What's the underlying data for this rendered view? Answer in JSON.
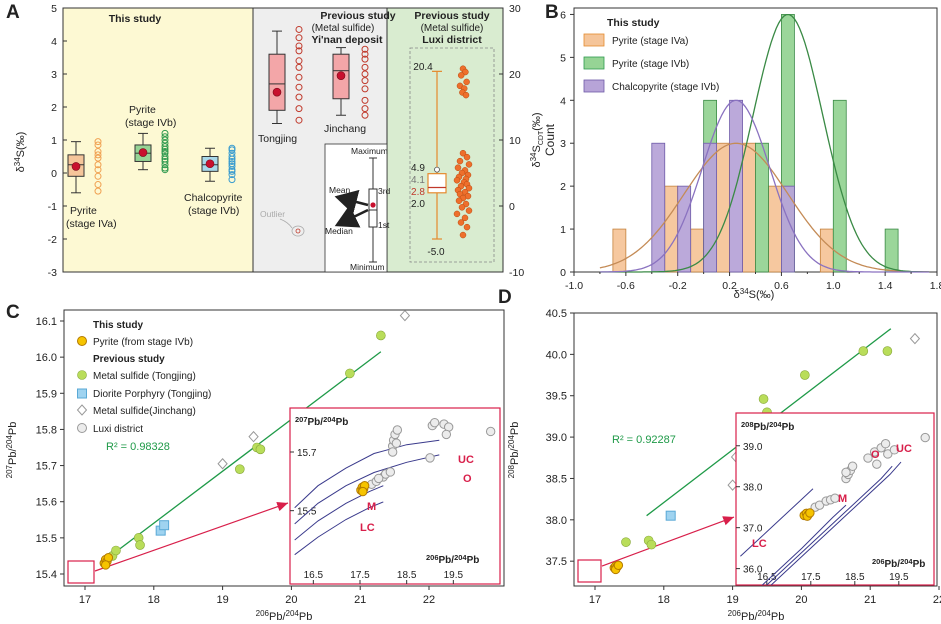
{
  "colors": {
    "study_bg": "#fdf9d3",
    "prev_bg": "#eeeeee",
    "luxi_bg": "#d9ecd0",
    "pyrite_a": "#f5c59a",
    "pyrite_a_line": "#e58a2e",
    "pyrite_b": "#96d495",
    "pyrite_b_line": "#2f9a4f",
    "chalco": "#a8d8ea",
    "chalco_line": "#3a9ccf",
    "chalco_hist": "#b7a4d8",
    "prev_box": "#f3a6a8",
    "prev_line": "#c0392b",
    "luxi_point": "#ee6f2c",
    "mean_dot": "#c8102e",
    "this_pyrite": "#f6c400",
    "tongjing_sulfide": "#b9dd5a",
    "porphyry": "#9fd3f0",
    "reg_line": "#1f9a48",
    "curve": "#3a3a8c",
    "accent": "#d81f4a"
  },
  "chart_data": [
    {
      "panel": "A",
      "type": "box",
      "ylabel_left": "δ34S(‰)",
      "ylabel_right": "δ34SCDT(‰)",
      "ylim_left": [
        -3,
        5
      ],
      "ylim_right": [
        -10,
        30
      ],
      "yticks_left": [
        "5",
        "4",
        "3",
        "2",
        "1",
        "0",
        "-1",
        "-2",
        "-3"
      ],
      "yticks_right": [
        "30",
        "20",
        "10",
        "0",
        "-10"
      ],
      "section_titles": [
        "This study",
        "Previous study",
        "(Metal sulfide)",
        "Yi'nan deposit",
        "Previous study",
        "(Metal sulfide)",
        "Luxi district"
      ],
      "groups": [
        {
          "name": "Pyrite (stage IVa)",
          "line1": "Pyrite",
          "line2": "(stage IVa)",
          "min": -0.6,
          "q1": -0.1,
          "median": 0.25,
          "q3": 0.55,
          "max": 0.95,
          "mean": 0.2,
          "points": [
            0.95,
            0.85,
            0.65,
            0.55,
            0.45,
            0.25,
            0.1,
            -0.1,
            -0.35,
            -0.55
          ]
        },
        {
          "name": "Pyrite (stage IVb)",
          "line1": "Pyrite",
          "line2": "(stage IVb)",
          "min": 0.1,
          "q1": 0.35,
          "median": 0.6,
          "q3": 0.85,
          "max": 1.2,
          "mean": 0.62,
          "points": [
            1.2,
            1.1,
            1.0,
            0.9,
            0.8,
            0.72,
            0.65,
            0.6,
            0.5,
            0.42,
            0.35,
            0.25,
            0.15,
            0.1
          ]
        },
        {
          "name": "Chalcopyrite (stage IVb)",
          "line1": "Chalcopyrite",
          "line2": "(stage IVb)",
          "min": -0.25,
          "q1": 0.05,
          "median": 0.25,
          "q3": 0.5,
          "max": 0.75,
          "mean": 0.28,
          "points": [
            0.75,
            0.7,
            0.6,
            0.5,
            0.42,
            0.35,
            0.28,
            0.2,
            0.1,
            0.05,
            -0.05,
            -0.2
          ]
        },
        {
          "name": "Tongjing",
          "line1": "Tongjing",
          "min": 1.5,
          "q1": 1.9,
          "median": 2.7,
          "q3": 3.6,
          "max": 4.3,
          "mean": 2.45,
          "points": [
            4.35,
            4.1,
            3.85,
            3.7,
            3.4,
            3.2,
            2.9,
            2.6,
            2.3,
            1.95,
            1.6
          ]
        },
        {
          "name": "Jinchang",
          "line1": "Jinchang",
          "min": 1.75,
          "q1": 2.25,
          "median": 3.1,
          "q3": 3.6,
          "max": 3.8,
          "mean": 2.95,
          "points": [
            3.75,
            3.6,
            3.45,
            3.2,
            3.0,
            2.8,
            2.55,
            2.2,
            1.95,
            1.75
          ]
        }
      ],
      "luxi": {
        "max": 20.4,
        "q3": 4.9,
        "mean": 4.1,
        "median": 2.8,
        "q1": 2.0,
        "min": -5.0,
        "labels": [
          "20.4",
          "4.9",
          "4.1",
          "2.8",
          "2.0",
          "-5.0"
        ],
        "upper_points": [
          20.8,
          20.3,
          19.8,
          18.8,
          18.2,
          17.8,
          17.2,
          16.8
        ],
        "lower_points": [
          8.0,
          7.4,
          6.8,
          6.3,
          5.8,
          5.4,
          5.0,
          4.7,
          4.4,
          4.1,
          3.9,
          3.6,
          3.3,
          3.0,
          2.7,
          2.4,
          2.1,
          1.8,
          1.5,
          1.2,
          0.8,
          0.3,
          -0.2,
          -0.7,
          -1.2,
          -1.8,
          -2.5,
          -3.2,
          -4.4
        ]
      },
      "legend_box": {
        "labels": [
          "Maximum",
          "3rd",
          "Mean",
          "Median",
          "1st",
          "Minimum",
          "Outlier"
        ]
      }
    },
    {
      "panel": "B",
      "type": "bar",
      "xlabel": "δ34S(‰)",
      "ylabel": "Count",
      "xlim": [
        -1.0,
        1.8
      ],
      "ylim": [
        0,
        6
      ],
      "xticks": [
        "-1.0",
        "-0.6",
        "-0.2",
        "0.2",
        "0.6",
        "1.0",
        "1.4",
        "1.8"
      ],
      "yticks": [
        "0",
        "1",
        "2",
        "3",
        "4",
        "5",
        "6"
      ],
      "legend_title": "This study",
      "series": [
        {
          "name": "Pyrite (stage IVa)",
          "bins": [
            [
              -0.6,
              1
            ],
            [
              -0.2,
              2
            ],
            [
              0.0,
              1
            ],
            [
              0.2,
              3
            ],
            [
              0.4,
              3
            ],
            [
              0.6,
              2
            ],
            [
              1.0,
              1
            ]
          ],
          "mean": 0.25,
          "sd": 0.4,
          "peak": 3
        },
        {
          "name": "Pyrite (stage IVb)",
          "bins": [
            [
              0.0,
              4
            ],
            [
              0.4,
              3
            ],
            [
              0.6,
              6
            ],
            [
              1.0,
              4
            ],
            [
              1.4,
              1
            ]
          ],
          "mean": 0.65,
          "sd": 0.27,
          "peak": 6
        },
        {
          "name": "Chalcopyrite (stage IVb)",
          "bins": [
            [
              -0.2,
              3
            ],
            [
              0.0,
              2
            ],
            [
              0.2,
              3
            ],
            [
              0.4,
              4
            ],
            [
              0.8,
              2
            ]
          ],
          "mean": 0.25,
          "sd": 0.26,
          "peak": 4
        }
      ]
    },
    {
      "panel": "C",
      "type": "scatter",
      "xlabel": "206Pb/204Pb",
      "ylabel": "207Pb/204Pb",
      "xlim": [
        17,
        23
      ],
      "ylim": [
        15.4,
        16.1
      ],
      "xticks": [
        "17",
        "18",
        "19",
        "20",
        "21",
        "22"
      ],
      "yticks": [
        "15.4",
        "15.5",
        "15.6",
        "15.7",
        "15.8",
        "15.9",
        "16.0",
        "16.1"
      ],
      "r2": "R² = 0.98328",
      "legend": {
        "this_study": "This study",
        "pyrite": "Pyrite (from stage IVb)",
        "previous_study": "Previous study",
        "tongjing": "Metal sulfide (Tongjing)",
        "porphyry": "Diorite Porphyry (Tongjing)",
        "jinchang": "Metal sulfide(Jinchang)",
        "luxi": "Luxi district"
      },
      "series": [
        {
          "name": "Pyrite (from stage IVb)",
          "points": [
            [
              17.28,
              15.43
            ],
            [
              17.3,
              15.44
            ],
            [
              17.32,
              15.435
            ],
            [
              17.34,
              15.445
            ],
            [
              17.3,
              15.425
            ]
          ]
        },
        {
          "name": "Metal sulfide (Tongjing)",
          "points": [
            [
              17.4,
              15.45
            ],
            [
              17.45,
              15.465
            ],
            [
              17.78,
              15.5
            ],
            [
              17.8,
              15.48
            ],
            [
              19.25,
              15.69
            ],
            [
              19.5,
              15.75
            ],
            [
              19.55,
              15.745
            ],
            [
              20.05,
              15.845
            ],
            [
              20.85,
              15.955
            ],
            [
              21.3,
              16.06
            ]
          ]
        },
        {
          "name": "Diorite Porphyry (Tongjing)",
          "points": [
            [
              18.1,
              15.52
            ],
            [
              18.15,
              15.535
            ]
          ]
        },
        {
          "name": "Metal sulfide(Jinchang)",
          "points": [
            [
              19.0,
              15.705
            ],
            [
              19.45,
              15.78
            ],
            [
              21.65,
              16.115
            ]
          ]
        }
      ],
      "regression": [
        [
          17.3,
          15.44
        ],
        [
          21.3,
          16.015
        ]
      ],
      "inset": {
        "title": "207Pb/204Pb",
        "xlabel": "206Pb/204Pb",
        "xlim": [
          16,
          20.5
        ],
        "ylim": [
          15.25,
          15.85
        ],
        "xticks": [
          "16.5",
          "17.5",
          "18.5",
          "19.5"
        ],
        "yticks": [
          "15.7",
          "15.5"
        ],
        "curve_labels": [
          "UC",
          "O",
          "M",
          "LC"
        ],
        "pyrite": [
          [
            17.52,
            15.57
          ],
          [
            17.55,
            15.58
          ],
          [
            17.58,
            15.575
          ],
          [
            17.6,
            15.585
          ],
          [
            17.56,
            15.565
          ]
        ],
        "luxi": [
          [
            17.75,
            15.59
          ],
          [
            17.85,
            15.6
          ],
          [
            18.0,
            15.615
          ],
          [
            18.05,
            15.625
          ],
          [
            18.15,
            15.632
          ],
          [
            17.9,
            15.61
          ],
          [
            18.2,
            15.72
          ],
          [
            18.22,
            15.74
          ],
          [
            18.25,
            15.76
          ],
          [
            18.3,
            15.775
          ],
          [
            18.2,
            15.7
          ],
          [
            18.28,
            15.73
          ],
          [
            19.05,
            15.79
          ],
          [
            19.1,
            15.8
          ],
          [
            19.3,
            15.795
          ],
          [
            19.4,
            15.785
          ],
          [
            19.35,
            15.76
          ],
          [
            19.0,
            15.68
          ],
          [
            20.3,
            15.77
          ]
        ],
        "curves": [
          {
            "name": "UC",
            "points": [
              [
                16.1,
                15.51
              ],
              [
                16.6,
                15.585
              ],
              [
                17.2,
                15.645
              ],
              [
                17.8,
                15.695
              ],
              [
                18.5,
                15.725
              ],
              [
                19.2,
                15.74
              ]
            ]
          },
          {
            "name": "O",
            "points": [
              [
                16.1,
                15.455
              ],
              [
                16.6,
                15.525
              ],
              [
                17.2,
                15.585
              ],
              [
                17.8,
                15.63
              ],
              [
                18.5,
                15.665
              ],
              [
                19.2,
                15.69
              ]
            ]
          },
          {
            "name": "M",
            "points": [
              [
                16.1,
                15.4
              ],
              [
                16.6,
                15.465
              ],
              [
                17.2,
                15.525
              ],
              [
                17.7,
                15.565
              ],
              [
                18.0,
                15.585
              ]
            ]
          },
          {
            "name": "LC",
            "points": [
              [
                16.1,
                15.35
              ],
              [
                16.6,
                15.41
              ],
              [
                17.2,
                15.47
              ],
              [
                17.7,
                15.51
              ],
              [
                18.0,
                15.53
              ]
            ]
          }
        ]
      }
    },
    {
      "panel": "D",
      "type": "scatter",
      "xlabel": "206Pb/204Pb",
      "ylabel": "208Pb/204Pb",
      "xlim": [
        17,
        23
      ],
      "ylim": [
        37.2,
        40.5
      ],
      "xticks": [
        "17",
        "18",
        "19",
        "20",
        "21",
        "22"
      ],
      "yticks": [
        "37.5",
        "38.0",
        "38.5",
        "39.0",
        "39.5",
        "40.0",
        "40.5"
      ],
      "r2": "R² = 0.92287",
      "series": [
        {
          "name": "Pyrite (from stage IVb)",
          "points": [
            [
              17.28,
              37.42
            ],
            [
              17.3,
              37.44
            ],
            [
              17.32,
              37.43
            ],
            [
              17.3,
              37.4
            ],
            [
              17.34,
              37.45
            ]
          ]
        },
        {
          "name": "Metal sulfide (Tongjing)",
          "points": [
            [
              17.45,
              37.73
            ],
            [
              17.78,
              37.75
            ],
            [
              17.82,
              37.7
            ],
            [
              19.25,
              39.12
            ],
            [
              19.45,
              39.46
            ],
            [
              19.5,
              39.3
            ],
            [
              20.05,
              39.75
            ],
            [
              20.9,
              40.04
            ],
            [
              21.25,
              40.04
            ]
          ]
        },
        {
          "name": "Diorite Porphyry (Tongjing)",
          "points": [
            [
              18.1,
              38.05
            ]
          ]
        },
        {
          "name": "Metal sulfide(Jinchang)",
          "points": [
            [
              19.0,
              38.42
            ],
            [
              19.05,
              38.76
            ],
            [
              21.65,
              40.19
            ]
          ]
        }
      ],
      "regression": [
        [
          17.75,
          38.05
        ],
        [
          21.3,
          40.31
        ]
      ],
      "inset": {
        "title": "208Pb/204Pb",
        "xlabel": "206Pb/204Pb",
        "xlim": [
          15.8,
          20.3
        ],
        "ylim": [
          35.6,
          39.8
        ],
        "xticks": [
          "16.5",
          "17.5",
          "18.5",
          "19.5"
        ],
        "yticks": [
          "39.0",
          "38.0",
          "37.0",
          "36.0"
        ],
        "curve_labels": [
          "UC",
          "O",
          "M",
          "LC"
        ],
        "pyrite": [
          [
            17.35,
            37.3
          ],
          [
            17.4,
            37.35
          ],
          [
            17.45,
            37.33
          ],
          [
            17.42,
            37.28
          ],
          [
            17.48,
            37.36
          ]
        ],
        "luxi": [
          [
            17.6,
            37.5
          ],
          [
            17.7,
            37.55
          ],
          [
            17.85,
            37.65
          ],
          [
            17.95,
            37.68
          ],
          [
            18.05,
            37.72
          ],
          [
            18.3,
            38.2
          ],
          [
            18.35,
            38.3
          ],
          [
            18.4,
            38.4
          ],
          [
            18.45,
            38.5
          ],
          [
            18.8,
            38.7
          ],
          [
            18.95,
            38.85
          ],
          [
            19.1,
            38.95
          ],
          [
            19.2,
            39.05
          ],
          [
            19.25,
            38.8
          ],
          [
            19.4,
            38.9
          ],
          [
            19.0,
            38.55
          ],
          [
            18.3,
            38.35
          ],
          [
            20.1,
            39.2
          ]
        ],
        "curves": [
          {
            "name": "UC",
            "points": [
              [
                16.6,
                35.6
              ],
              [
                17.5,
                36.5
              ],
              [
                18.4,
                37.4
              ],
              [
                19.3,
                38.3
              ],
              [
                19.55,
                38.6
              ]
            ]
          },
          {
            "name": "O",
            "points": [
              [
                16.5,
                35.6
              ],
              [
                17.4,
                36.5
              ],
              [
                18.3,
                37.4
              ],
              [
                19.1,
                38.2
              ],
              [
                19.35,
                38.5
              ]
            ]
          },
          {
            "name": "M",
            "points": [
              [
                16.4,
                35.6
              ],
              [
                17.3,
                36.5
              ],
              [
                18.0,
                37.25
              ],
              [
                18.3,
                37.55
              ]
            ]
          },
          {
            "name": "LC",
            "points": [
              [
                15.9,
                36.3
              ],
              [
                16.5,
                36.9
              ],
              [
                17.2,
                37.6
              ],
              [
                17.55,
                37.95
              ]
            ]
          }
        ]
      }
    }
  ]
}
